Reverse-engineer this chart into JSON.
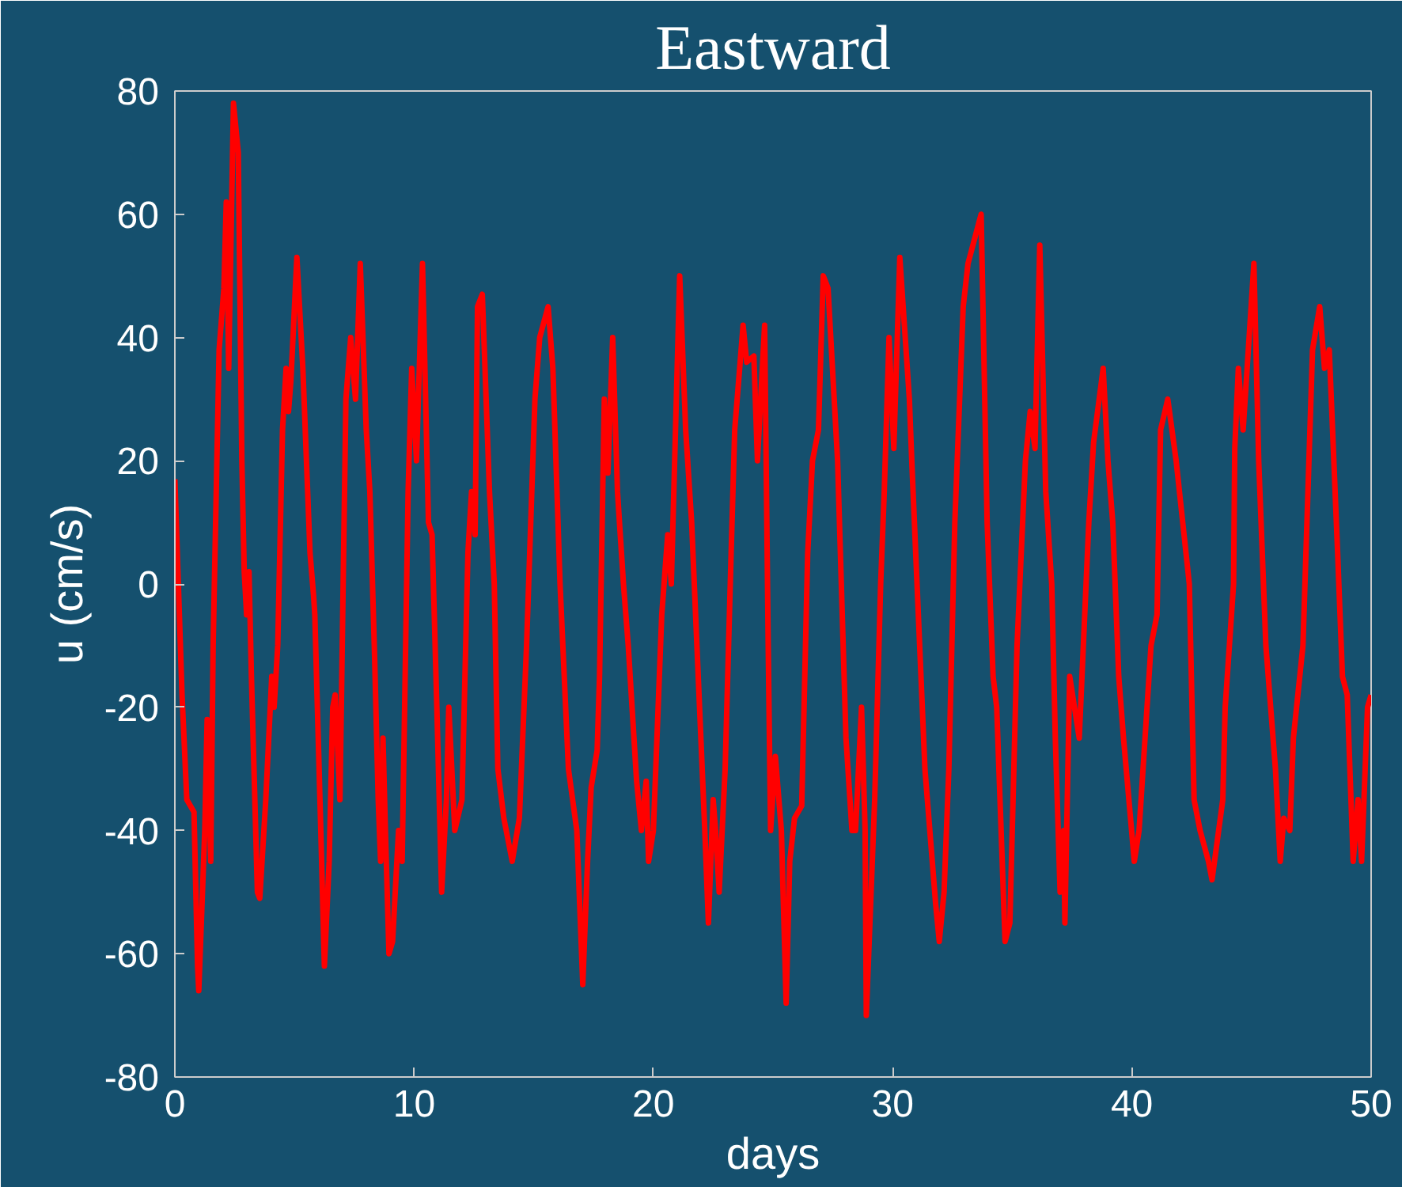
{
  "chart_data": {
    "type": "line",
    "title": "Eastward",
    "xlabel": "days",
    "ylabel": "u (cm/s)",
    "xlim": [
      0,
      50
    ],
    "ylim": [
      -80,
      80
    ],
    "xticks": [
      0,
      10,
      20,
      30,
      40,
      50
    ],
    "yticks": [
      -80,
      -60,
      -40,
      -20,
      0,
      20,
      40,
      60,
      80
    ],
    "grid": false,
    "marker": "none",
    "line_style": "solid",
    "series": [
      {
        "color": "#ff0000",
        "x": [
          0,
          0.3,
          0.5,
          0.8,
          0.95,
          1.0,
          1.25,
          1.35,
          1.5,
          1.6,
          1.85,
          2.05,
          2.15,
          2.25,
          2.45,
          2.65,
          2.8,
          2.9,
          3.0,
          3.1,
          3.2,
          3.45,
          3.55,
          3.8,
          4.05,
          4.15,
          4.3,
          4.5,
          4.65,
          4.75,
          4.85,
          5.1,
          5.35,
          5.65,
          5.8,
          5.85,
          6.1,
          6.25,
          6.45,
          6.6,
          6.7,
          6.9,
          7.15,
          7.35,
          7.55,
          7.75,
          8.0,
          8.15,
          8.35,
          8.5,
          8.6,
          8.7,
          8.8,
          8.95,
          9.1,
          9.35,
          9.5,
          9.75,
          9.9,
          10.1,
          10.35,
          10.6,
          10.75,
          10.95,
          11.15,
          11.35,
          11.45,
          11.7,
          12.0,
          12.25,
          12.4,
          12.55,
          12.65,
          12.85,
          13.15,
          13.35,
          13.5,
          13.75,
          14.1,
          14.4,
          14.7,
          15.05,
          15.25,
          15.6,
          15.8,
          16.1,
          16.45,
          16.8,
          17.05,
          17.25,
          17.4,
          17.65,
          17.75,
          17.95,
          18.1,
          18.3,
          18.5,
          18.75,
          18.95,
          19.3,
          19.5,
          19.7,
          19.8,
          20.0,
          20.35,
          20.6,
          20.75,
          21.1,
          21.35,
          21.6,
          22.15,
          22.3,
          22.5,
          22.6,
          22.75,
          23.0,
          23.25,
          23.4,
          23.75,
          23.9,
          24.2,
          24.35,
          24.65,
          24.8,
          24.9,
          25.1,
          25.35,
          25.55,
          25.7,
          25.9,
          26.2,
          26.45,
          26.65,
          26.9,
          27.1,
          27.3,
          27.7,
          28.05,
          28.3,
          28.45,
          28.7,
          28.85,
          28.9,
          29.1,
          29.25,
          29.5,
          29.65,
          29.85,
          30.05,
          30.3,
          30.7,
          30.8,
          31.35,
          31.8,
          31.95,
          32.15,
          32.35,
          32.6,
          32.95,
          33.15,
          33.7,
          33.95,
          34.2,
          34.35,
          34.7,
          34.9,
          35.2,
          35.55,
          35.75,
          35.95,
          36.15,
          36.4,
          36.65,
          36.8,
          37.0,
          37.15,
          37.2,
          37.4,
          37.8,
          38.2,
          38.4,
          38.8,
          39.0,
          39.2,
          39.45,
          39.65,
          40.1,
          40.3,
          40.8,
          41.05,
          41.2,
          41.5,
          41.85,
          42.4,
          42.6,
          42.85,
          43.2,
          43.35,
          43.8,
          43.9,
          44.25,
          44.3,
          44.45,
          44.65,
          45.1,
          45.3,
          45.6,
          45.8,
          46.0,
          46.2,
          46.35,
          46.6,
          46.75,
          47.15,
          47.55,
          47.85,
          48.05,
          48.25,
          48.6,
          48.8,
          49.0,
          49.25,
          49.45,
          49.6,
          49.85,
          50
        ],
        "values": [
          17,
          -18,
          -35,
          -37,
          -62,
          -66,
          -40,
          -22,
          -45,
          -10,
          38,
          48,
          62,
          35,
          78,
          70,
          20,
          2,
          -5,
          2,
          -15,
          -50,
          -51,
          -35,
          -15,
          -20,
          -10,
          25,
          35,
          28,
          33,
          53,
          35,
          5,
          -2,
          -5,
          -40,
          -62,
          -45,
          -20,
          -18,
          -35,
          30,
          40,
          30,
          52,
          25,
          15,
          -12,
          -35,
          -45,
          -25,
          -40,
          -60,
          -58,
          -40,
          -45,
          15,
          35,
          20,
          52,
          10,
          8,
          -20,
          -50,
          -35,
          -20,
          -40,
          -35,
          5,
          15,
          8,
          45,
          47,
          15,
          0,
          -30,
          -38,
          -45,
          -38,
          -10,
          30,
          40,
          45,
          35,
          0,
          -30,
          -40,
          -65,
          -45,
          -33,
          -27,
          -15,
          30,
          18,
          40,
          15,
          0,
          -10,
          -32,
          -40,
          -32,
          -45,
          -40,
          -5,
          8,
          0,
          50,
          25,
          10,
          -40,
          -55,
          -35,
          -40,
          -50,
          -30,
          5,
          25,
          42,
          36,
          37,
          20,
          42,
          -10,
          -40,
          -28,
          -40,
          -68,
          -45,
          -38,
          -36,
          5,
          20,
          25,
          50,
          48,
          20,
          -25,
          -40,
          -40,
          -20,
          -40,
          -70,
          -50,
          -35,
          0,
          15,
          40,
          22,
          53,
          30,
          20,
          -30,
          -52,
          -58,
          -50,
          -30,
          10,
          45,
          52,
          60,
          10,
          -15,
          -20,
          -58,
          -55,
          -10,
          20,
          28,
          22,
          55,
          15,
          0,
          -25,
          -50,
          -40,
          -55,
          -15,
          -25,
          10,
          23,
          35,
          20,
          10,
          -15,
          -25,
          -45,
          -40,
          -10,
          -5,
          25,
          30,
          20,
          0,
          -35,
          -40,
          -45,
          -48,
          -35,
          -20,
          0,
          22,
          35,
          25,
          52,
          20,
          -10,
          -20,
          -30,
          -45,
          -38,
          -40,
          -25,
          -10,
          38,
          45,
          35,
          38,
          5,
          -15,
          -18,
          -45,
          -35,
          -45,
          -20,
          -18
        ]
      }
    ]
  }
}
